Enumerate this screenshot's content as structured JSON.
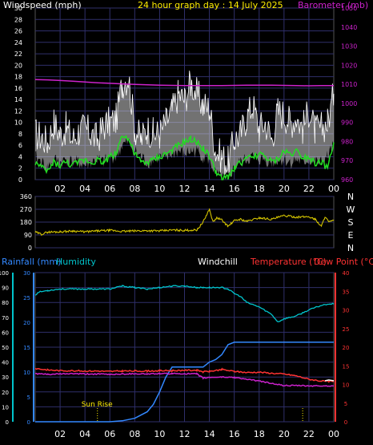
{
  "colors": {
    "wind": "#ffffff",
    "gust_fill": "#cfcfcf",
    "wind_avg": "#22dd22",
    "barometer": "#cc22cc",
    "direction": "#d4c400",
    "rain": "#3388ff",
    "humidity": "#00c4cc",
    "windchill": "#ffffff",
    "temperature": "#ff3333",
    "dewpoint": "#cc22cc",
    "grid": "#2f2f6a",
    "title": "#ffee00",
    "sunrise": "#ffee00"
  },
  "chart_data": [
    {
      "type": "line",
      "panel": "wind-barometer",
      "title": "24 hour graph day : 14 July 2025",
      "left_label": "Windspeed (mph)",
      "right_label": "Barometer (mb)",
      "left_ticks": [
        "0",
        "2",
        "4",
        "6",
        "8",
        "10",
        "12",
        "14",
        "16",
        "18",
        "20",
        "22",
        "24",
        "26",
        "28",
        "30"
      ],
      "right_ticks": [
        "960",
        "970",
        "980",
        "990",
        "1000",
        "1010",
        "1020",
        "1030",
        "1040",
        "1050"
      ],
      "x_ticks": [
        "02",
        "04",
        "06",
        "08",
        "10",
        "12",
        "14",
        "16",
        "18",
        "20",
        "22",
        "00"
      ],
      "ylim_left": [
        0,
        30
      ],
      "ylim_right": [
        960,
        1050
      ],
      "xlim": [
        0,
        24
      ],
      "series": [
        {
          "key": "gust_max",
          "axis": "left",
          "x": [
            0,
            0.5,
            1,
            1.5,
            2,
            2.5,
            3,
            3.5,
            4,
            4.5,
            5,
            5.5,
            6,
            6.5,
            7,
            7.5,
            8,
            8.5,
            9,
            9.5,
            10,
            10.5,
            11,
            11.5,
            12,
            12.5,
            13,
            13.5,
            14,
            14.5,
            15,
            15.5,
            16,
            16.5,
            17,
            17.5,
            18,
            18.5,
            19,
            19.5,
            20,
            20.5,
            21,
            21.5,
            22,
            22.5,
            23,
            23.5,
            24
          ],
          "y": [
            8,
            7.5,
            6.5,
            10,
            8,
            9,
            7,
            8.5,
            9,
            8,
            7,
            9.5,
            10,
            10.5,
            17,
            18,
            9,
            7,
            9,
            8,
            8,
            10,
            12,
            15,
            14,
            17,
            15,
            13,
            12.5,
            5,
            4,
            3,
            7,
            8,
            11,
            13,
            9,
            10,
            7,
            12,
            11.5,
            10,
            11,
            9,
            12,
            8.5,
            9,
            10,
            15
          ]
        },
        {
          "key": "gust_min",
          "axis": "left",
          "x": [
            0,
            0.5,
            1,
            1.5,
            2,
            2.5,
            3,
            3.5,
            4,
            4.5,
            5,
            5.5,
            6,
            6.5,
            7,
            7.5,
            8,
            8.5,
            9,
            9.5,
            10,
            10.5,
            11,
            11.5,
            12,
            12.5,
            13,
            13.5,
            14,
            14.5,
            15,
            15.5,
            16,
            16.5,
            17,
            17.5,
            18,
            18.5,
            19,
            19.5,
            20,
            20.5,
            21,
            21.5,
            22,
            22.5,
            23,
            23.5,
            24
          ],
          "y": [
            4,
            3,
            2,
            3.5,
            3,
            3.5,
            3,
            3,
            2.5,
            3,
            3.5,
            3,
            4,
            4,
            6,
            6.5,
            5,
            4,
            3,
            3.5,
            4,
            3.5,
            4.5,
            5,
            4.5,
            5,
            5,
            4,
            3.5,
            1,
            0,
            0.5,
            2,
            3,
            3.5,
            4,
            3.5,
            3.5,
            3,
            3.5,
            3.5,
            3,
            3.5,
            3,
            3.5,
            3,
            3,
            4,
            6
          ]
        },
        {
          "key": "wind_avg",
          "axis": "left",
          "x": [
            0,
            0.5,
            1,
            1.5,
            2,
            2.5,
            3,
            3.5,
            4,
            4.5,
            5,
            5.5,
            6,
            6.5,
            7,
            7.5,
            8,
            8.5,
            9,
            9.5,
            10,
            10.5,
            11,
            11.5,
            12,
            12.5,
            13,
            13.5,
            14,
            14.5,
            15,
            15.5,
            16,
            16.5,
            17,
            17.5,
            18,
            18.5,
            19,
            19.5,
            20,
            20.5,
            21,
            21.5,
            22,
            22.5,
            23,
            23.5,
            24
          ],
          "y": [
            3,
            2,
            1.5,
            3,
            2.5,
            3,
            2.5,
            3,
            3.5,
            3,
            3.5,
            3,
            4,
            4.5,
            8,
            7,
            4.5,
            3,
            3,
            3.5,
            4,
            4.5,
            5,
            6,
            6.5,
            7,
            6.5,
            5.5,
            4,
            1.5,
            0,
            0.5,
            2,
            3,
            3.5,
            4,
            4.5,
            4,
            3,
            3.5,
            5,
            4.5,
            5,
            4,
            4,
            3,
            3,
            2,
            6.5
          ]
        },
        {
          "key": "barometer",
          "axis": "right",
          "x": [
            0,
            1,
            2,
            3,
            4,
            5,
            6,
            7,
            8,
            9,
            10,
            11,
            12,
            13,
            14,
            15,
            16,
            17,
            18,
            19,
            20,
            21,
            22,
            23,
            24
          ],
          "y": [
            1012.5,
            1012.3,
            1012,
            1011.6,
            1011.2,
            1010.8,
            1010.5,
            1010.2,
            1009.9,
            1009.7,
            1009.5,
            1009.4,
            1009.3,
            1009.3,
            1009.3,
            1009.3,
            1009.4,
            1009.5,
            1009.5,
            1009.5,
            1009.4,
            1009.3,
            1009.2,
            1009.3,
            1009.3
          ]
        }
      ]
    },
    {
      "type": "line",
      "panel": "wind-direction",
      "left_ticks": [
        "0",
        "90",
        "180",
        "270",
        "360"
      ],
      "right_ticks": [
        "N",
        "E",
        "S",
        "W",
        "N"
      ],
      "ylim": [
        0,
        360
      ],
      "xlim": [
        0,
        24
      ],
      "series": [
        {
          "key": "direction",
          "x": [
            0,
            0.5,
            1,
            2,
            3,
            4,
            5,
            6,
            7,
            8,
            9,
            10,
            11,
            12,
            13,
            13.5,
            13.8,
            14,
            14.3,
            14.6,
            15,
            15.5,
            16,
            16.5,
            17,
            18,
            19,
            20,
            21,
            22,
            22.5,
            23,
            23.3,
            23.6,
            24
          ],
          "y": [
            110,
            95,
            110,
            112,
            118,
            112,
            118,
            122,
            115,
            118,
            120,
            118,
            124,
            122,
            125,
            180,
            235,
            270,
            180,
            210,
            195,
            150,
            190,
            200,
            185,
            210,
            200,
            225,
            215,
            218,
            200,
            150,
            220,
            180,
            190
          ]
        }
      ]
    },
    {
      "type": "line",
      "panel": "rain-humidity-temperature",
      "rain_label": "Rainfall (mm)",
      "humidity_label": "Humidity",
      "windchill_label": "Windchill",
      "temperature_label": "Temperature (°C)",
      "dewpoint_label": "Dew Point (°C)",
      "sunrise_label": "Sun Rise",
      "humidity_ticks": [
        "0",
        "10",
        "20",
        "30",
        "40",
        "50",
        "60",
        "70",
        "80",
        "90",
        "100"
      ],
      "rain_ticks": [
        "0",
        "5",
        "10",
        "15",
        "20",
        "25",
        "30"
      ],
      "temp_ticks": [
        "0",
        "5",
        "10",
        "15",
        "20",
        "25",
        "30",
        "35",
        "40"
      ],
      "x_ticks": [
        "02",
        "04",
        "06",
        "08",
        "10",
        "12",
        "14",
        "16",
        "18",
        "20",
        "22",
        "00"
      ],
      "ylim_humidity": [
        0,
        100
      ],
      "ylim_rain": [
        0,
        30
      ],
      "ylim_temp": [
        0,
        40
      ],
      "xlim": [
        0,
        24
      ],
      "sunrise_x": 5,
      "sunset_x": 21.5,
      "series": [
        {
          "key": "humidity",
          "x": [
            0,
            0.3,
            1,
            2,
            3,
            4,
            5,
            6,
            6.5,
            7,
            8,
            9,
            10,
            11,
            12,
            13,
            13.5,
            14,
            15,
            15.5,
            16,
            16.5,
            17,
            18,
            19,
            19.5,
            20,
            21,
            22,
            23,
            23.5,
            24
          ],
          "y": [
            85,
            87,
            88,
            89,
            89,
            89,
            89,
            89,
            90,
            91,
            90,
            89,
            90,
            91,
            91,
            90,
            90,
            90,
            90,
            89,
            86,
            84,
            80,
            77,
            72,
            67,
            69,
            71,
            75,
            78,
            79,
            79
          ]
        },
        {
          "key": "temperature",
          "x": [
            0,
            1,
            2,
            3,
            4,
            5,
            6,
            7,
            8,
            9,
            10,
            11,
            12,
            13,
            13.5,
            14,
            15,
            16,
            17,
            18,
            19,
            20,
            21,
            22,
            23,
            24
          ],
          "y": [
            14.3,
            13.9,
            13.7,
            13.7,
            13.6,
            13.6,
            13.5,
            13.6,
            13.6,
            13.6,
            13.7,
            13.7,
            13.8,
            13.8,
            13.4,
            13.5,
            14,
            13.5,
            13.2,
            13.3,
            13,
            12.8,
            12.3,
            11.4,
            10.9,
            10.8
          ]
        },
        {
          "key": "dewpoint",
          "x": [
            0,
            1,
            2,
            3,
            4,
            5,
            6,
            7,
            8,
            9,
            10,
            11,
            12,
            13,
            13.5,
            14,
            15,
            16,
            17,
            18,
            19,
            20,
            21,
            22,
            23,
            24
          ],
          "y": [
            12.9,
            12.7,
            12.8,
            12.9,
            12.8,
            12.8,
            12.7,
            12.8,
            12.9,
            12.8,
            12.9,
            12.9,
            12.9,
            12.8,
            11.7,
            11.9,
            12,
            11.9,
            11.4,
            10.9,
            10.3,
            9.7,
            9.7,
            9.6,
            9.6,
            9.6
          ]
        },
        {
          "key": "windchill",
          "x": [
            23.3,
            23.6,
            24
          ],
          "y": [
            11,
            11.2,
            11
          ]
        },
        {
          "key": "rain",
          "x": [
            0,
            6,
            7,
            8,
            9,
            9.5,
            10,
            10.5,
            11,
            13.5,
            14,
            14.5,
            15,
            15.5,
            16,
            24
          ],
          "y": [
            0,
            0,
            0.2,
            0.7,
            2,
            3.5,
            6,
            9,
            11,
            11,
            12,
            12.5,
            13.5,
            15.5,
            16,
            16
          ]
        }
      ]
    }
  ]
}
